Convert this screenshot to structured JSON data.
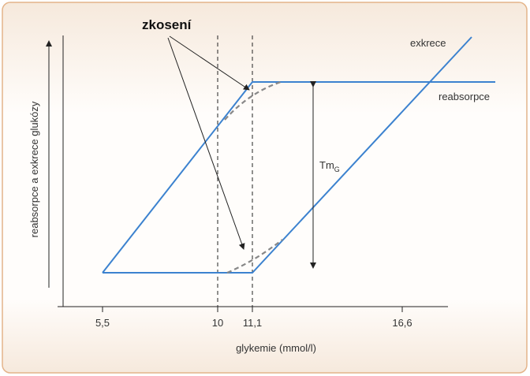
{
  "diagram": {
    "annotation": "zkosení",
    "curves": {
      "excretion": "exkrece",
      "reabsorption": "reabsorpce"
    },
    "transport_max": {
      "label": "Tm",
      "subscript": "G"
    },
    "y_axis_label": "reabsorpce a exkrece glukózy",
    "x_axis_label": "glykemie (mmol/l)",
    "x_ticks": [
      "5,5",
      "10",
      "11,1",
      "16,6"
    ]
  }
}
